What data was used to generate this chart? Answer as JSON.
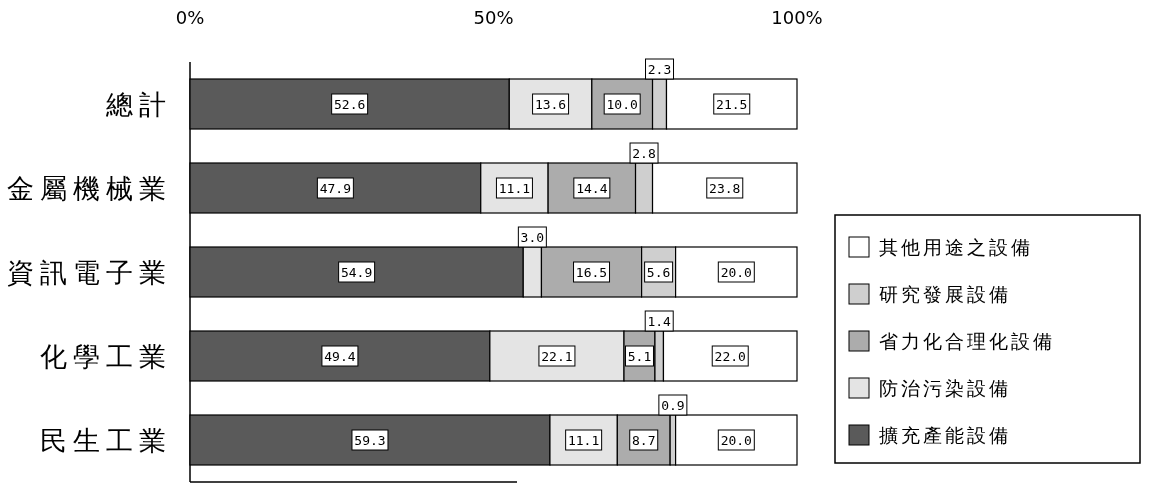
{
  "chart_data": {
    "type": "bar",
    "orientation": "horizontal",
    "stacked": true,
    "legend": "right",
    "grid": false,
    "categories": [
      "總計",
      "金屬機械業",
      "資訊電子業",
      "化學工業",
      "民生工業"
    ],
    "xlim": [
      0,
      100
    ],
    "xticks": [
      {
        "value": 0,
        "label": "0%"
      },
      {
        "value": 50,
        "label": "50%"
      },
      {
        "value": 100,
        "label": "100%"
      }
    ],
    "series": [
      {
        "name": "擴充產能設備",
        "color": "#5a5a5a",
        "values": [
          52.6,
          47.9,
          54.9,
          49.4,
          59.3
        ],
        "value_labels": [
          "52.6",
          "47.9",
          "54.9",
          "49.4",
          "59.3"
        ]
      },
      {
        "name": "防治污染設備",
        "color": "#e4e4e4",
        "values": [
          13.6,
          11.1,
          3.0,
          22.1,
          11.1
        ],
        "value_labels": [
          "13.6",
          "11.1",
          "3.0",
          "22.1",
          "11.1"
        ]
      },
      {
        "name": "省力化合理化設備",
        "color": "#acacac",
        "values": [
          10.0,
          14.4,
          16.5,
          5.1,
          8.7
        ],
        "value_labels": [
          "10.0",
          "14.4",
          "16.5",
          "5.1",
          "8.7"
        ]
      },
      {
        "name": "研究發展設備",
        "color": "#cfcfcf",
        "values": [
          2.3,
          2.8,
          5.6,
          1.4,
          0.9
        ],
        "value_labels": [
          "2.3",
          "2.8",
          "5.6",
          "1.4",
          "0.9"
        ]
      },
      {
        "name": "其他用途之設備",
        "color": "#ffffff",
        "values": [
          21.5,
          23.8,
          20.0,
          22.0,
          20.0
        ],
        "value_labels": [
          "21.5",
          "23.8",
          "20.0",
          "22.0",
          "20.0"
        ]
      }
    ]
  }
}
